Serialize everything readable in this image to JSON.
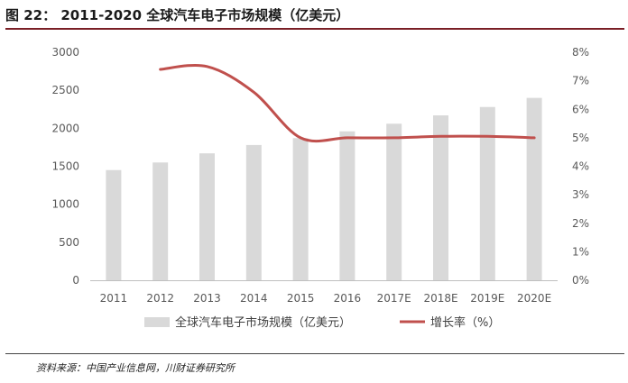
{
  "header": {
    "title": "图 22： 2011-2020 全球汽车电子市场规模（亿美元）"
  },
  "footer": {
    "source": "资料来源：中国产业信息网，川财证券研究所"
  },
  "colors": {
    "bar": "#d9d9d9",
    "line": "#c0504d",
    "rule": "#7a1f26",
    "axis_text": "#595959"
  },
  "chart_data": {
    "type": "bar",
    "title": "",
    "xlabel": "",
    "ylabel": "",
    "categories": [
      "2011",
      "2012",
      "2013",
      "2014",
      "2015",
      "2016",
      "2017E",
      "2018E",
      "2019E",
      "2020E"
    ],
    "y_ticks": [
      "0",
      "500",
      "1000",
      "1500",
      "2000",
      "2500",
      "3000"
    ],
    "y2_ticks": [
      "0%",
      "1%",
      "2%",
      "3%",
      "4%",
      "5%",
      "6%",
      "7%",
      "8%"
    ],
    "ylim": [
      0,
      3000
    ],
    "y2lim": [
      0,
      8
    ],
    "grid": false,
    "legend_position": "bottom",
    "series": [
      {
        "name": "全球汽车电子市场规模（亿美元）",
        "type": "bar",
        "axis": "left",
        "values": [
          1450,
          1550,
          1670,
          1780,
          1870,
          1960,
          2060,
          2170,
          2280,
          2400
        ]
      },
      {
        "name": "增长率（%）",
        "type": "line",
        "axis": "right",
        "values": [
          null,
          7.4,
          7.5,
          6.6,
          5.0,
          5.0,
          5.0,
          5.05,
          5.05,
          5.0
        ]
      }
    ]
  }
}
